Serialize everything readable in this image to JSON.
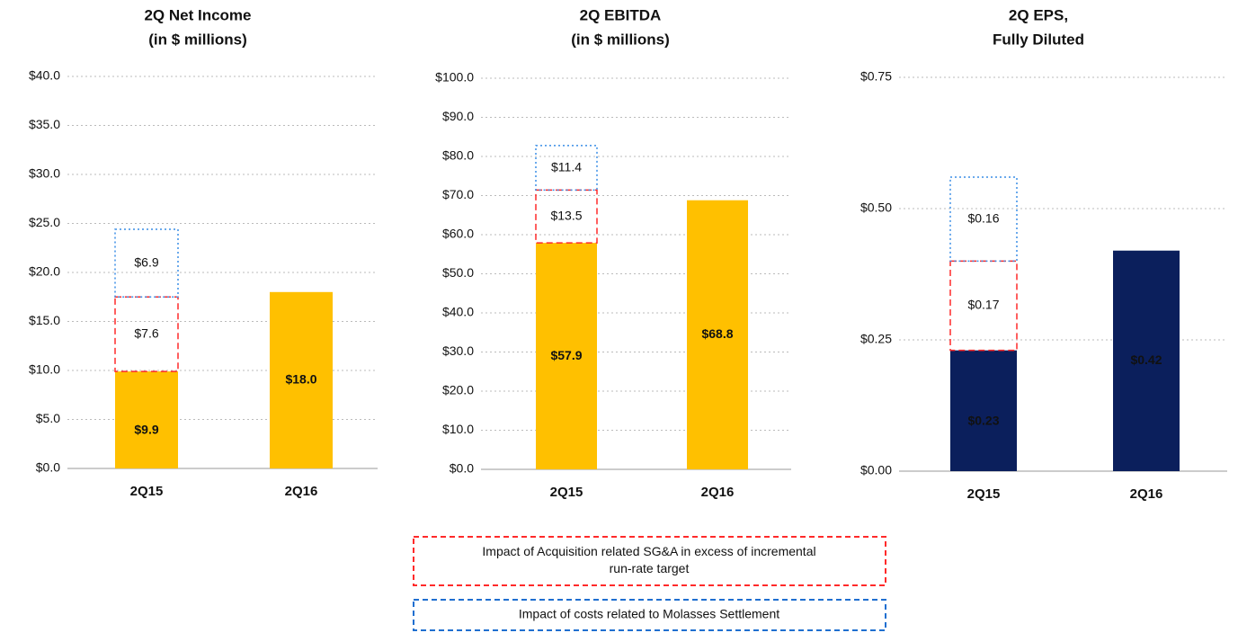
{
  "charts": [
    {
      "type": "bar",
      "stacked": true,
      "title": [
        "2Q Net Income",
        "(in $ millions)"
      ],
      "categories": [
        "2Q15",
        "2Q16"
      ],
      "series": [
        {
          "color": "#ffc000",
          "style": "solid",
          "values": [
            9.9,
            18.0
          ],
          "value_labels": [
            "$9.9",
            "$18.0"
          ]
        },
        {
          "color": "#ff2a2a",
          "style": "dashed",
          "values": [
            7.6,
            null
          ],
          "value_labels": [
            "$7.6",
            null
          ]
        },
        {
          "color": "#3a8ee6",
          "style": "dotted",
          "values": [
            6.9,
            null
          ],
          "value_labels": [
            "$6.9",
            null
          ]
        }
      ],
      "ylim": [
        0,
        40
      ],
      "yticks": [
        {
          "value": 0,
          "label": "$0.0"
        },
        {
          "value": 5,
          "label": "$5.0"
        },
        {
          "value": 10,
          "label": "$10.0"
        },
        {
          "value": 15,
          "label": "$15.0"
        },
        {
          "value": 20,
          "label": "$20.0"
        },
        {
          "value": 25,
          "label": "$25.0"
        },
        {
          "value": 30,
          "label": "$30.0"
        },
        {
          "value": 35,
          "label": "$35.0"
        },
        {
          "value": 40,
          "label": "$40.0"
        }
      ],
      "grid": true
    },
    {
      "type": "bar",
      "stacked": true,
      "title": [
        "2Q EBITDA",
        "(in $ millions)"
      ],
      "categories": [
        "2Q15",
        "2Q16"
      ],
      "series": [
        {
          "color": "#ffc000",
          "style": "solid",
          "values": [
            57.9,
            68.8
          ],
          "value_labels": [
            "$57.9",
            "$68.8"
          ]
        },
        {
          "color": "#ff2a2a",
          "style": "dashed",
          "values": [
            13.5,
            null
          ],
          "value_labels": [
            "$13.5",
            null
          ]
        },
        {
          "color": "#3a8ee6",
          "style": "dotted",
          "values": [
            11.4,
            null
          ],
          "value_labels": [
            "$11.4",
            null
          ]
        }
      ],
      "ylim": [
        0,
        100
      ],
      "yticks": [
        {
          "value": 0,
          "label": "$0.0"
        },
        {
          "value": 10,
          "label": "$10.0"
        },
        {
          "value": 20,
          "label": "$20.0"
        },
        {
          "value": 30,
          "label": "$30.0"
        },
        {
          "value": 40,
          "label": "$40.0"
        },
        {
          "value": 50,
          "label": "$50.0"
        },
        {
          "value": 60,
          "label": "$60.0"
        },
        {
          "value": 70,
          "label": "$70.0"
        },
        {
          "value": 80,
          "label": "$80.0"
        },
        {
          "value": 90,
          "label": "$90.0"
        },
        {
          "value": 100,
          "label": "$100.0"
        }
      ],
      "grid": true
    },
    {
      "type": "bar",
      "stacked": true,
      "title": [
        "2Q EPS,",
        "Fully Diluted"
      ],
      "categories": [
        "2Q15",
        "2Q16"
      ],
      "series": [
        {
          "color": "#0b1f5c",
          "style": "solid",
          "values": [
            0.23,
            0.42
          ],
          "value_labels": [
            "$0.23",
            "$0.42"
          ]
        },
        {
          "color": "#ff2a2a",
          "style": "dashed",
          "values": [
            0.17,
            null
          ],
          "value_labels": [
            "$0.17",
            null
          ]
        },
        {
          "color": "#3a8ee6",
          "style": "dotted",
          "values": [
            0.16,
            null
          ],
          "value_labels": [
            "$0.16",
            null
          ]
        }
      ],
      "ylim": [
        0,
        0.75
      ],
      "yticks": [
        {
          "value": 0,
          "label": "$0.00"
        },
        {
          "value": 0.25,
          "label": "$0.25"
        },
        {
          "value": 0.5,
          "label": "$0.50"
        },
        {
          "value": 0.75,
          "label": "$0.75"
        }
      ],
      "grid": true
    }
  ],
  "legend": [
    {
      "label": [
        "Impact of Acquisition related SG&A in excess of incremental",
        "run-rate target"
      ],
      "color": "#ff2a2a"
    },
    {
      "label": [
        "Impact of costs related to Molasses Settlement"
      ],
      "color": "#1f6fd0"
    }
  ]
}
